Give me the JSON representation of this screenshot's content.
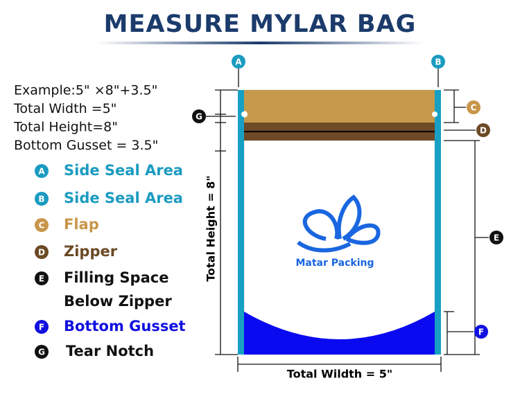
{
  "header": {
    "title": "MEASURE MYLAR BAG"
  },
  "example": [
    "Example:5\" ×8\"+3.5\"",
    "Total Width =5\"",
    "Total Height=8\"",
    "Bottom Gusset = 3.5\""
  ],
  "legend": [
    {
      "badge": "A",
      "lines": [
        "Side Seal Area"
      ]
    },
    {
      "badge": "B",
      "lines": [
        "Side Seal Area"
      ]
    },
    {
      "badge": "C",
      "lines": [
        "Flap"
      ]
    },
    {
      "badge": "D",
      "lines": [
        "Zipper"
      ]
    },
    {
      "badge": "E",
      "lines": [
        "Filling Space",
        "Below Zipper"
      ]
    },
    {
      "badge": "F",
      "lines": [
        "Bottom Gusset"
      ]
    },
    {
      "badge": "G",
      "lines": [
        "Tear Notch"
      ]
    }
  ],
  "diagram": {
    "markers": [
      "A",
      "B",
      "C",
      "D",
      "E",
      "F",
      "G"
    ],
    "height_label": "Total Height = 8\"",
    "width_label": "Total Wildth = 5\"",
    "brand": "Matar Packing"
  }
}
